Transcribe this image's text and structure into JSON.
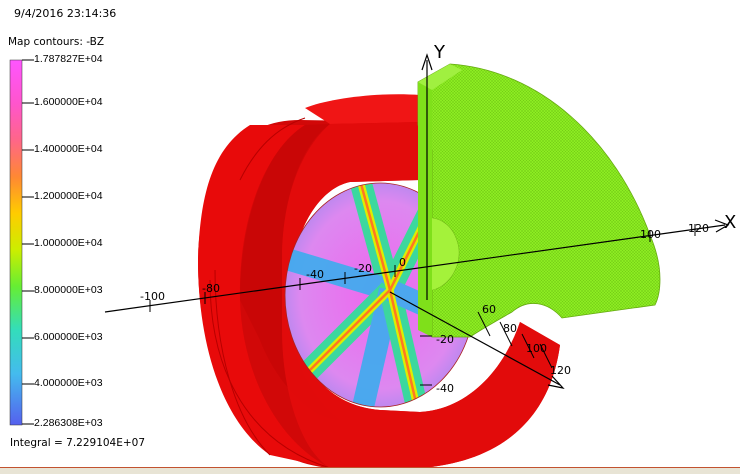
{
  "viewport": {
    "timestamp": "9/4/2016 23:14:36",
    "map_title": "Map contours: -BZ",
    "integral": "Integral = 7.229104E+07"
  },
  "legend": {
    "values": [
      "1.787827E+04",
      "1.600000E+04",
      "1.400000E+04",
      "1.200000E+04",
      "1.000000E+04",
      "8.000000E+03",
      "6.000000E+03",
      "4.000000E+03",
      "2.286308E+03"
    ],
    "colors": [
      "#ff55ff",
      "#ff66aa",
      "#ff8833",
      "#ffcc00",
      "#ddee00",
      "#77ee22",
      "#33ddaa",
      "#44bbee",
      "#5566ee"
    ]
  },
  "axes": {
    "x_letter": "X",
    "y_letter": "Y",
    "x_ticks": [
      "-100",
      "-80",
      "-40",
      "-20",
      "0",
      "100",
      "120"
    ],
    "y_ticks": [
      "-20",
      "-40"
    ],
    "z_ticks": [
      "60",
      "80",
      "100",
      "120"
    ]
  },
  "colors": {
    "ring": "#ee0b0b",
    "plate": "#88ee22",
    "background": "#ffffff"
  }
}
